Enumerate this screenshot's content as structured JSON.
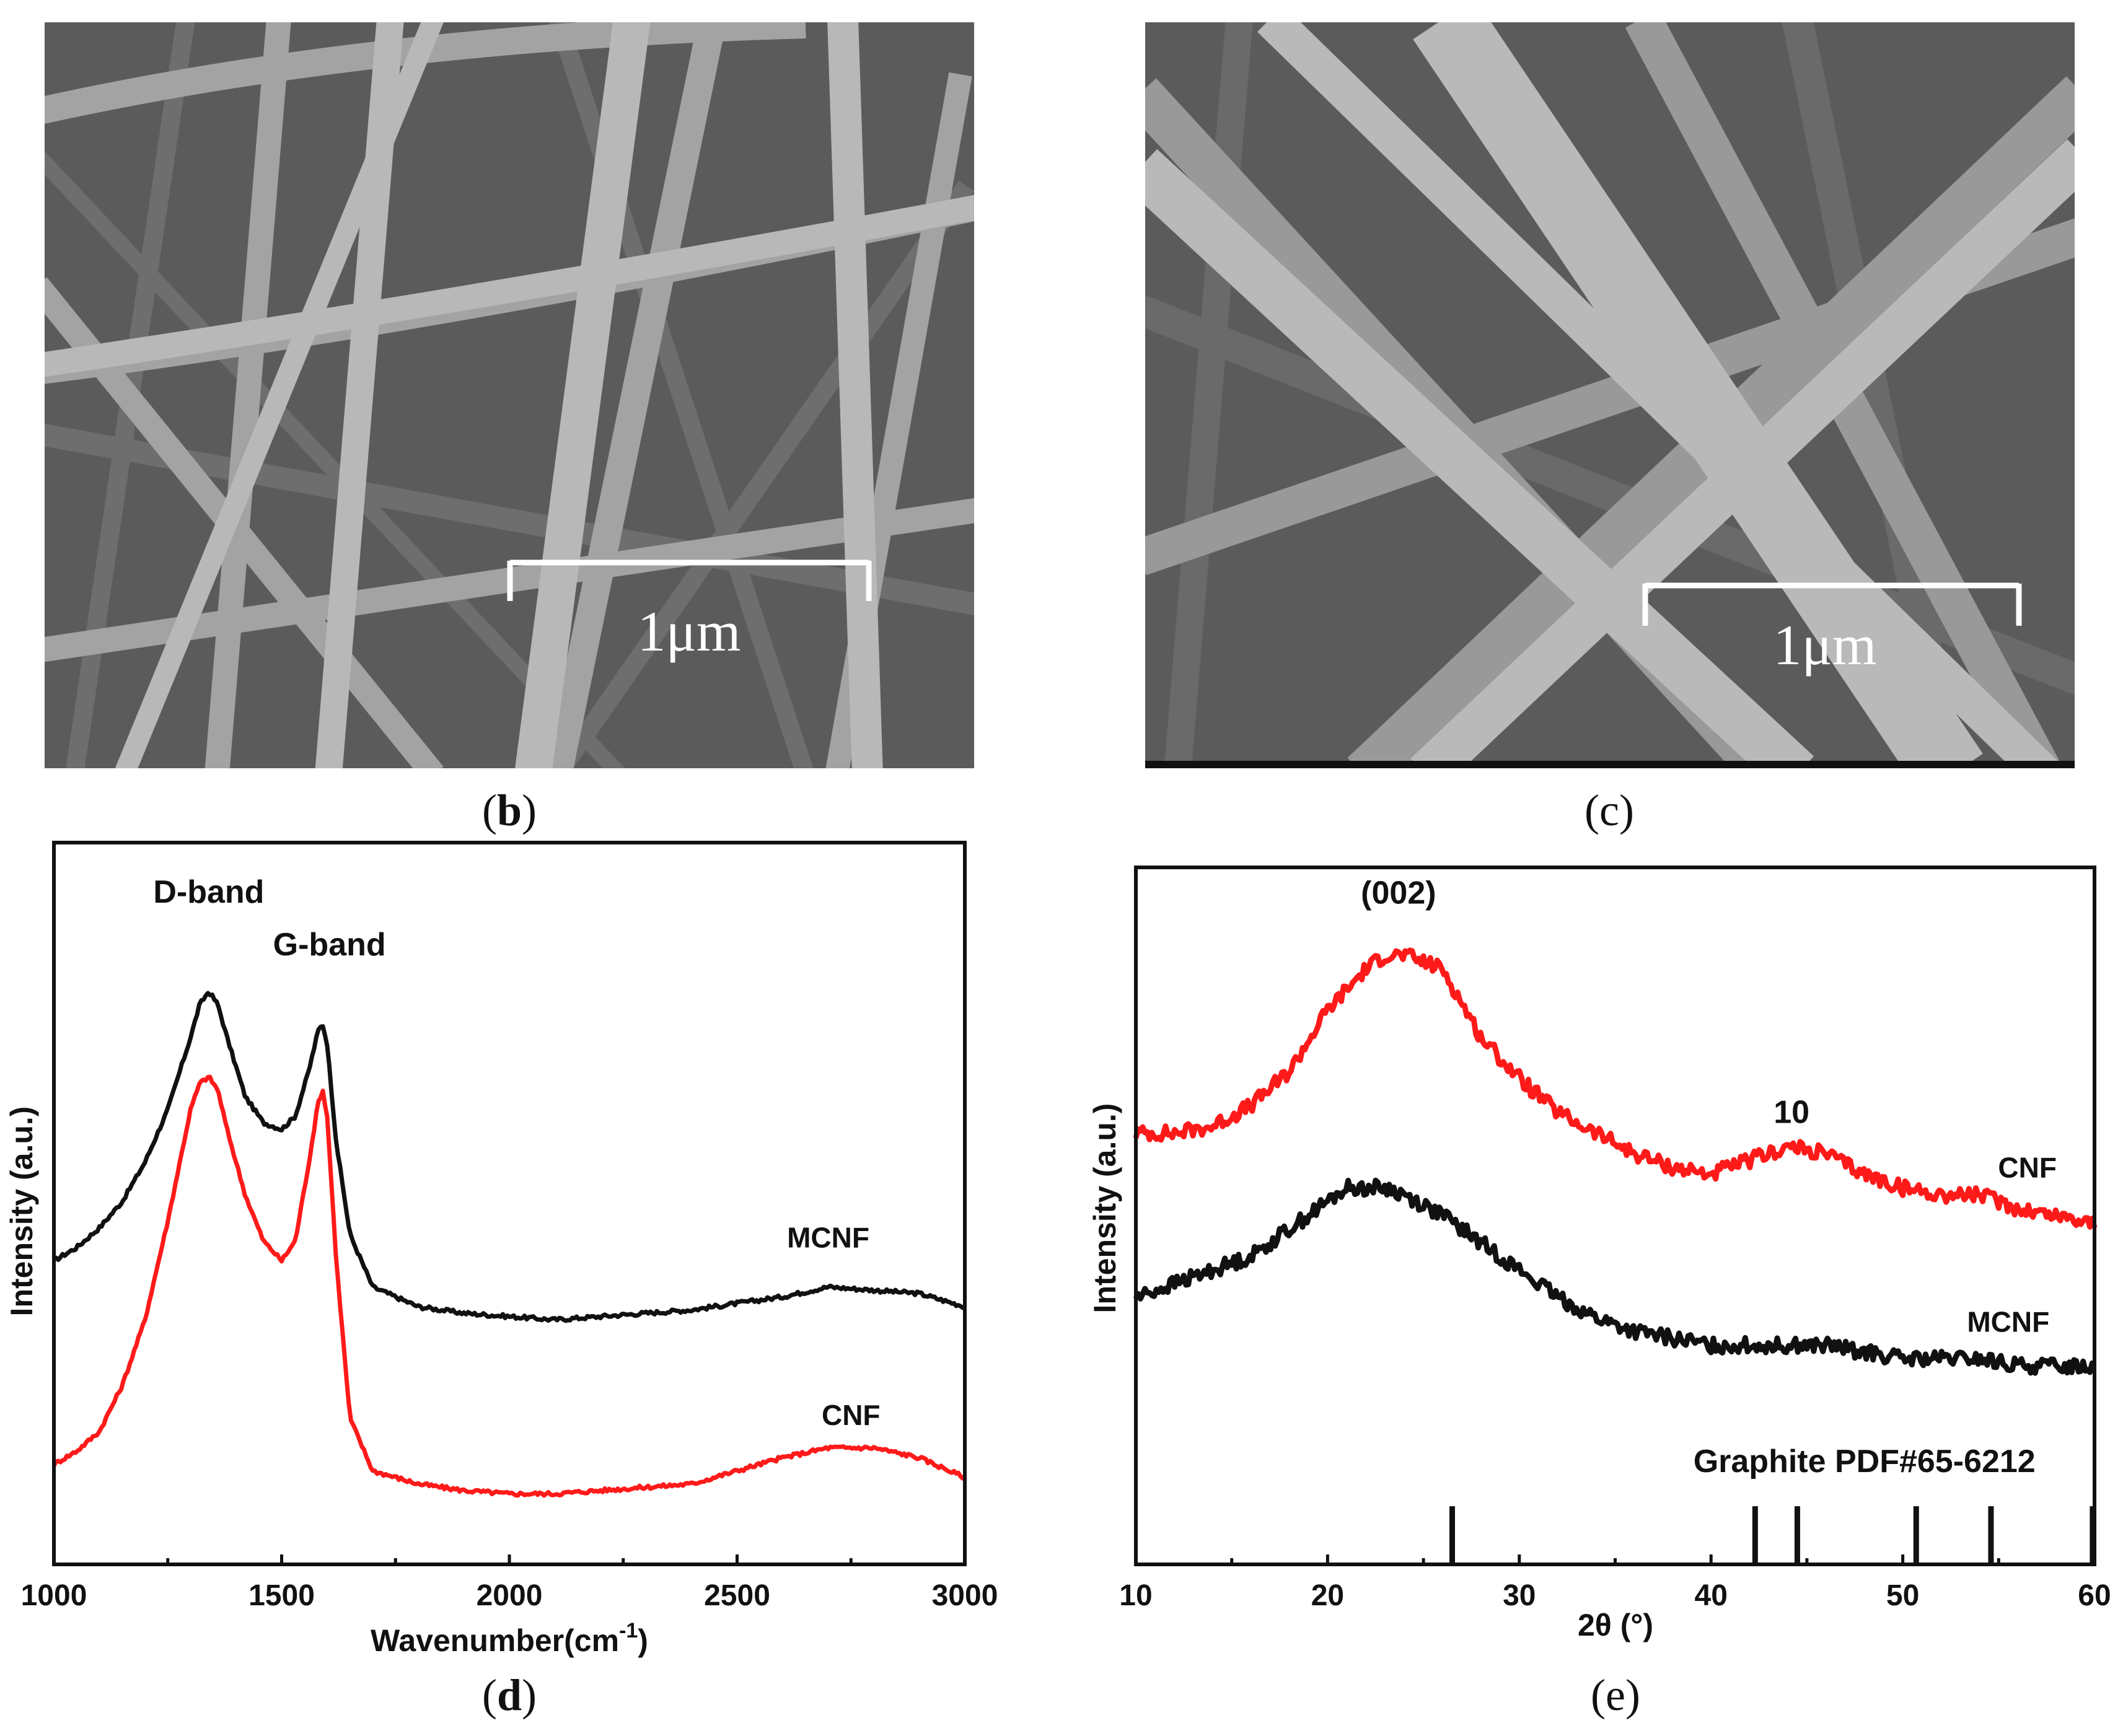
{
  "colors": {
    "black_series": "#111111",
    "red_series": "#ff1a1a"
  },
  "panel_b": {
    "label": "b",
    "scale_bar": "1μm"
  },
  "panel_c": {
    "label": "c",
    "scale_bar": "1μm"
  },
  "chart_data": [
    {
      "id": "d",
      "label": "d",
      "type": "line",
      "xlabel": "Wavenumber(cm",
      "xlabel_sup": "-1",
      "xlabel_close": ")",
      "ylabel": "Intensity (a.u.)",
      "xlim": [
        1000,
        3000
      ],
      "ylim": [
        0,
        1
      ],
      "xticks": [
        1000,
        1500,
        2000,
        2500,
        3000
      ],
      "minor_xticks": [
        1250,
        1750,
        2250,
        2750
      ],
      "annotations": [
        {
          "text": "D-band",
          "x": 1340,
          "y": 0.965
        },
        {
          "text": "G-band",
          "x": 1605,
          "y": 0.885
        }
      ],
      "series": [
        {
          "name": "MCNF",
          "label_at": [
            2700,
            0.44
          ],
          "x": [
            1000,
            1050,
            1100,
            1150,
            1200,
            1250,
            1300,
            1320,
            1340,
            1360,
            1380,
            1420,
            1460,
            1500,
            1530,
            1560,
            1580,
            1590,
            1600,
            1620,
            1650,
            1700,
            1800,
            1900,
            2000,
            2100,
            2200,
            2300,
            2400,
            2500,
            2600,
            2700,
            2800,
            2900,
            3000
          ],
          "y": [
            0.42,
            0.44,
            0.47,
            0.51,
            0.57,
            0.65,
            0.76,
            0.81,
            0.83,
            0.81,
            0.76,
            0.67,
            0.63,
            0.62,
            0.64,
            0.71,
            0.77,
            0.78,
            0.75,
            0.6,
            0.46,
            0.38,
            0.35,
            0.34,
            0.335,
            0.33,
            0.335,
            0.34,
            0.345,
            0.355,
            0.365,
            0.38,
            0.375,
            0.37,
            0.35
          ]
        },
        {
          "name": "CNF",
          "label_at": [
            2750,
            0.17
          ],
          "x": [
            1000,
            1050,
            1100,
            1150,
            1200,
            1250,
            1300,
            1320,
            1340,
            1360,
            1380,
            1420,
            1460,
            1500,
            1530,
            1560,
            1580,
            1590,
            1600,
            1620,
            1650,
            1700,
            1800,
            1900,
            2000,
            2100,
            2200,
            2300,
            2400,
            2500,
            2600,
            2700,
            2800,
            2900,
            3000
          ],
          "y": [
            0.11,
            0.13,
            0.16,
            0.23,
            0.33,
            0.48,
            0.65,
            0.69,
            0.7,
            0.68,
            0.62,
            0.52,
            0.45,
            0.42,
            0.45,
            0.57,
            0.66,
            0.68,
            0.64,
            0.42,
            0.18,
            0.1,
            0.08,
            0.07,
            0.065,
            0.065,
            0.07,
            0.075,
            0.08,
            0.1,
            0.12,
            0.135,
            0.135,
            0.12,
            0.09
          ]
        }
      ]
    },
    {
      "id": "e",
      "label": "e",
      "type": "line",
      "xlabel": "2θ (°)",
      "ylabel": "Intensity (a.u.)",
      "xlim": [
        10,
        60
      ],
      "ylim": [
        0,
        1
      ],
      "xticks": [
        10,
        20,
        30,
        40,
        50,
        60
      ],
      "minor_xticks": [
        15,
        25,
        35,
        45,
        55
      ],
      "annotations": [
        {
          "text": "(002)",
          "x": 23.7,
          "y": 0.965
        },
        {
          "text": "10",
          "x": 44.2,
          "y": 0.645
        },
        {
          "text": "Graphite PDF#65-6212",
          "x": 48,
          "y": 0.135
        }
      ],
      "reference_lines": {
        "name": "Graphite PDF#65-6212",
        "positions": [
          26.5,
          42.3,
          44.5,
          50.7,
          54.6,
          59.9
        ],
        "heights": [
          0.085,
          0.085,
          0.085,
          0.085,
          0.085,
          0.085
        ]
      },
      "series": [
        {
          "name": "CNF",
          "label_at": [
            56.5,
            0.565
          ],
          "x": [
            10,
            12,
            14,
            16,
            18,
            20,
            22,
            23,
            24,
            25,
            26,
            27,
            28,
            30,
            32,
            34,
            36,
            38,
            40,
            42,
            44,
            46,
            48,
            50,
            52,
            54,
            56,
            58,
            60
          ],
          "y": [
            0.63,
            0.63,
            0.64,
            0.67,
            0.72,
            0.81,
            0.87,
            0.89,
            0.89,
            0.88,
            0.87,
            0.82,
            0.77,
            0.71,
            0.66,
            0.63,
            0.6,
            0.58,
            0.57,
            0.59,
            0.61,
            0.6,
            0.57,
            0.55,
            0.54,
            0.54,
            0.52,
            0.51,
            0.5
          ]
        },
        {
          "name": "MCNF",
          "label_at": [
            55.5,
            0.34
          ],
          "x": [
            10,
            12,
            14,
            16,
            18,
            20,
            21,
            22,
            23,
            24,
            26,
            28,
            30,
            32,
            34,
            36,
            38,
            40,
            42,
            44,
            46,
            48,
            50,
            52,
            54,
            56,
            58,
            60
          ],
          "y": [
            0.39,
            0.41,
            0.43,
            0.45,
            0.49,
            0.53,
            0.55,
            0.55,
            0.55,
            0.54,
            0.51,
            0.47,
            0.43,
            0.39,
            0.36,
            0.34,
            0.33,
            0.32,
            0.32,
            0.32,
            0.32,
            0.31,
            0.3,
            0.3,
            0.3,
            0.29,
            0.29,
            0.29
          ]
        }
      ]
    }
  ]
}
